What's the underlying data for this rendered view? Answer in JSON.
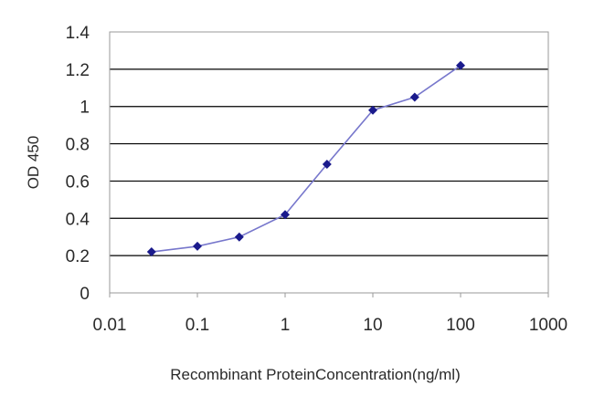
{
  "chart_data": {
    "type": "line",
    "title": "",
    "xlabel": "Recombinant ProteinConcentration(ng/ml)",
    "ylabel": "OD 450",
    "x_scale": "log",
    "xlim": [
      0.01,
      1000
    ],
    "ylim": [
      0,
      1.4
    ],
    "x_ticks": [
      "0.01",
      "0.1",
      "1",
      "10",
      "100",
      "1000"
    ],
    "y_ticks": [
      "0",
      "0.2",
      "0.4",
      "0.6",
      "0.8",
      "1",
      "1.2",
      "1.4"
    ],
    "grid": "horizontal",
    "legend": "none",
    "colors": {
      "series": "#1a1a8c",
      "line": "#7777cc",
      "grid": "#000000",
      "plot_border": "#9a9a9a"
    },
    "series": [
      {
        "x": [
          0.03,
          0.1,
          0.3,
          1,
          3,
          10,
          30,
          100
        ],
        "y": [
          0.22,
          0.25,
          0.3,
          0.42,
          0.69,
          0.98,
          1.05,
          1.22
        ]
      }
    ]
  }
}
